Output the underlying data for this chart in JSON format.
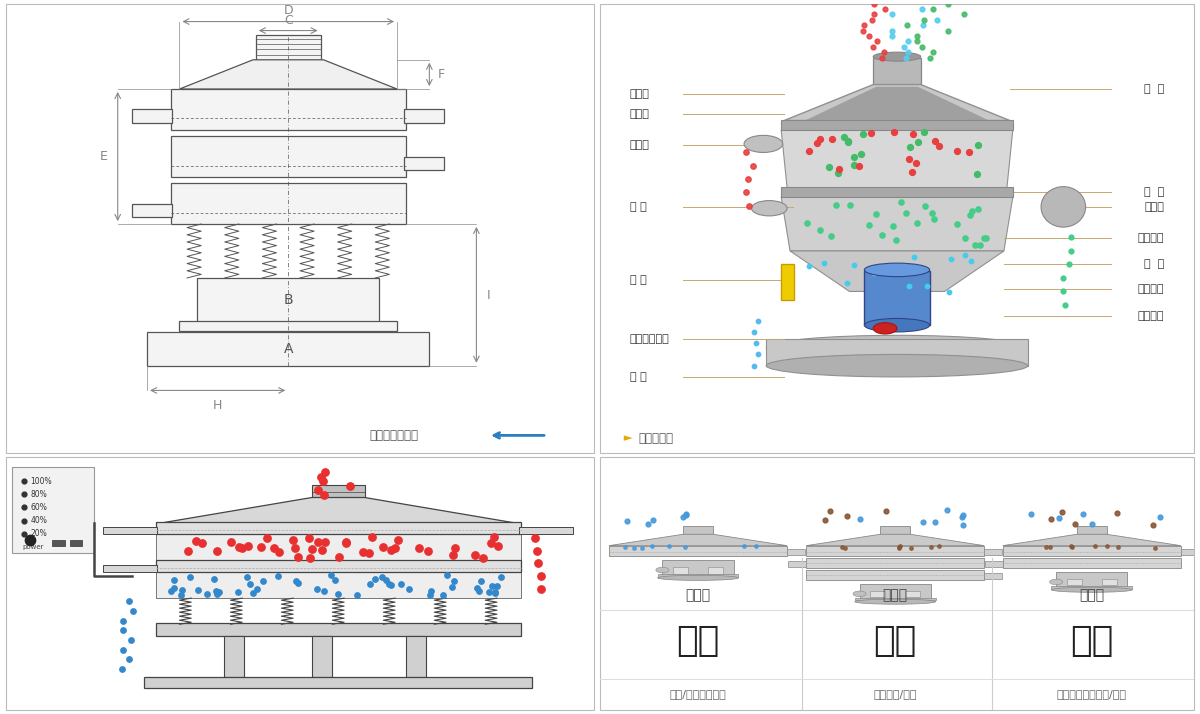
{
  "bg_color": "#ffffff",
  "section_border_color": "#dddddd",
  "top_left": {
    "dim_labels": [
      "D",
      "C",
      "F",
      "E",
      "B",
      "A",
      "H",
      "I"
    ],
    "line_color": "#555555",
    "dim_color": "#888888",
    "title": "外形尺寸示意图",
    "arrow_color": "#2b7fc4"
  },
  "top_right": {
    "left_labels": [
      "进料口",
      "防尘盖",
      "出料口",
      "束 环",
      "弹 簧",
      "运输固定螺栓",
      "机 座"
    ],
    "right_labels": [
      "筛  网",
      "网  架",
      "加重块",
      "上部重锤",
      "筛  盘",
      "振动电机",
      "下部重锤"
    ],
    "label_line_color": "#c8a870",
    "label_color": "#333333",
    "title": "结构示意图",
    "title_arrow_color": "#e8a800"
  },
  "bottom_left": {
    "panel_labels": [
      "100%",
      "80%",
      "60%",
      "40%",
      "20%"
    ],
    "panel_text": "power",
    "red_color": "#e83030",
    "blue_color": "#3388cc",
    "machine_color": "#cccccc",
    "line_color": "#444444"
  },
  "bottom_right": {
    "types": [
      "单层式",
      "三层式",
      "双层式"
    ],
    "functions": [
      "分级",
      "过滤",
      "除杂"
    ],
    "descriptions": [
      "颗粒/粉末准确分级",
      "去除异物/结块",
      "去除液体中的颗粒/异物"
    ],
    "machine_color": "#c8c8c8",
    "blue_dot": "#4499dd",
    "brown_dot": "#885533",
    "divider_color": "#cccccc",
    "func_color": "#222222",
    "desc_color": "#666666",
    "type_color": "#444444"
  }
}
